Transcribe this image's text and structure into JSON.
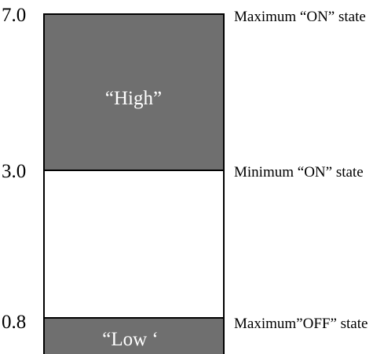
{
  "diagram": {
    "levels": [
      {
        "value_label": "7.0",
        "state_label": "Maximum “ON” state"
      },
      {
        "value_label": "3.0",
        "state_label": "Minimum “ON” state"
      },
      {
        "value_label": "0.8",
        "state_label": "Maximum”OFF” state"
      }
    ],
    "bands": {
      "high": {
        "label": "“High”"
      },
      "low": {
        "label": "“Low ‘"
      }
    },
    "colors": {
      "band_fill": "#6f6f6f",
      "gap_fill": "#ffffff",
      "outline": "#000000",
      "band_text": "#ffffff"
    }
  }
}
